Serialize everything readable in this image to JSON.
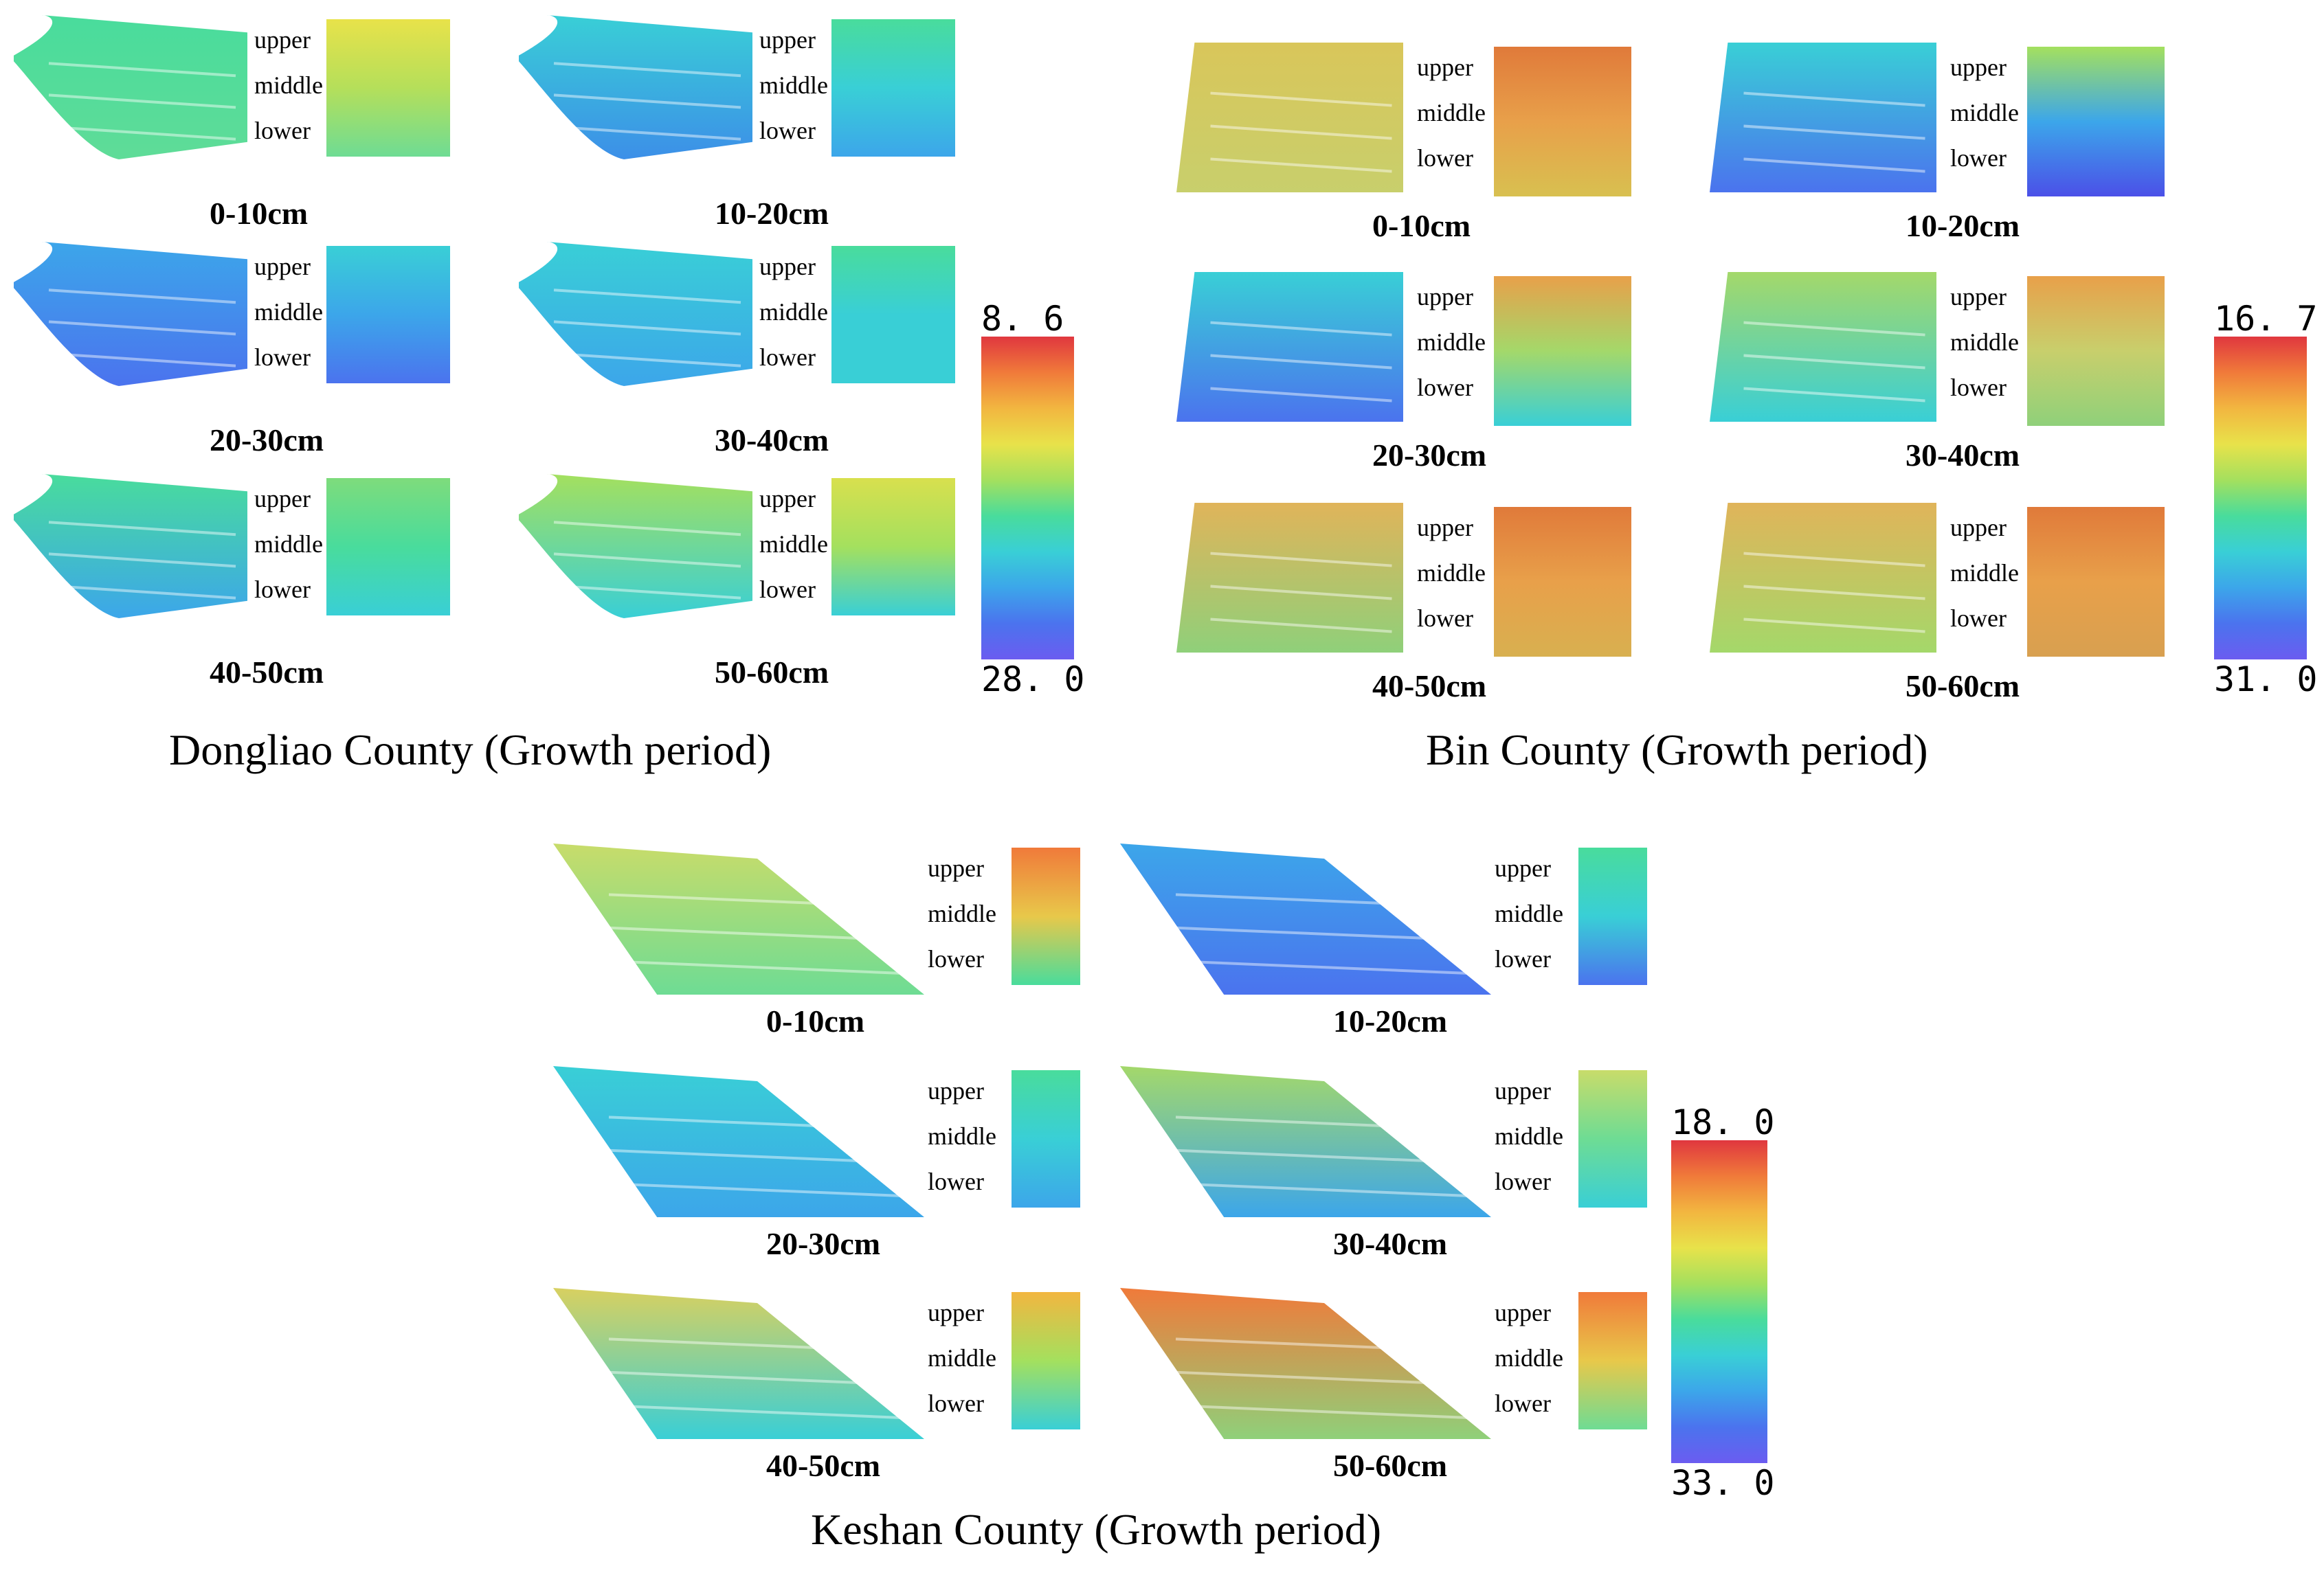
{
  "colorscale": {
    "stops": [
      "#e0373f",
      "#f07a3a",
      "#f2b640",
      "#e8e24a",
      "#a4e05e",
      "#49dc9c",
      "#39cfd6",
      "#3ca6ea",
      "#4b73ee",
      "#6b5cf0"
    ]
  },
  "panels": [
    {
      "name": "dongliao",
      "title": "Dongliao County (Growth period)",
      "legend": {
        "top": "8. 6",
        "bottom": "28. 0"
      },
      "positions": [
        "upper",
        "middle",
        "lower"
      ],
      "cells": [
        {
          "depth": "0-10cm",
          "field": [
            "#49dc9c",
            "#5fdc98"
          ],
          "strip": [
            "#e8e24a",
            "#b5df5a",
            "#6edc94"
          ]
        },
        {
          "depth": "10-20cm",
          "field": [
            "#39cfd6",
            "#3c8fe8"
          ],
          "strip": [
            "#49dc9c",
            "#39cfd6",
            "#3ca6ea"
          ]
        },
        {
          "depth": "20-30cm",
          "field": [
            "#3ca6ea",
            "#4b73ee"
          ],
          "strip": [
            "#39cfd6",
            "#3ca6ea",
            "#4b73ee"
          ]
        },
        {
          "depth": "30-40cm",
          "field": [
            "#39cfd6",
            "#3ca6ea"
          ],
          "strip": [
            "#49dc9c",
            "#39cfd6",
            "#39cfd6"
          ]
        },
        {
          "depth": "40-50cm",
          "field": [
            "#49dc9c",
            "#3ca6ea"
          ],
          "strip": [
            "#7edc7c",
            "#49dc9c",
            "#39cfd6"
          ]
        },
        {
          "depth": "50-60cm",
          "field": [
            "#a4e05e",
            "#39cfd6"
          ],
          "strip": [
            "#d8e04e",
            "#a4e05e",
            "#39cfd6"
          ]
        }
      ]
    },
    {
      "name": "bin",
      "title": "Bin County (Growth period)",
      "legend": {
        "top": "16. 7",
        "bottom": "31. 0"
      },
      "positions": [
        "upper",
        "middle",
        "lower"
      ],
      "cells": [
        {
          "depth": "0-10cm",
          "field": [
            "#d9c65a",
            "#c8cf6c"
          ],
          "strip": [
            "#e07a3a",
            "#e8a04a",
            "#d8c050"
          ]
        },
        {
          "depth": "10-20cm",
          "field": [
            "#39cfd6",
            "#4b73ee"
          ],
          "strip": [
            "#a4e05e",
            "#3ca6ea",
            "#4b50e8"
          ]
        },
        {
          "depth": "20-30cm",
          "field": [
            "#39cfd6",
            "#4b73ee"
          ],
          "strip": [
            "#e8a04a",
            "#a4d86a",
            "#39cfd6"
          ]
        },
        {
          "depth": "30-40cm",
          "field": [
            "#a4d86a",
            "#39cfd6"
          ],
          "strip": [
            "#e8a04a",
            "#c8cf6c",
            "#8fd07a"
          ]
        },
        {
          "depth": "40-50cm",
          "field": [
            "#e0b45a",
            "#8fd07a"
          ],
          "strip": [
            "#e07a3a",
            "#e8a04a",
            "#d8b050"
          ]
        },
        {
          "depth": "50-60cm",
          "field": [
            "#e0b45a",
            "#a4d86a"
          ],
          "strip": [
            "#e07a3a",
            "#e8a04a",
            "#d8a050"
          ]
        }
      ]
    },
    {
      "name": "keshan",
      "title": "Keshan County (Growth period)",
      "legend": {
        "top": "18. 0",
        "bottom": "33. 0"
      },
      "positions": [
        "upper",
        "middle",
        "lower"
      ],
      "cells": [
        {
          "depth": "0-10cm",
          "field": [
            "#c8dc6a",
            "#6edc94"
          ],
          "strip": [
            "#f07a3a",
            "#e8c84a",
            "#49dc9c"
          ]
        },
        {
          "depth": "10-20cm",
          "field": [
            "#3ca6ea",
            "#4b73ee"
          ],
          "strip": [
            "#49dc9c",
            "#39cfd6",
            "#4b73ee"
          ]
        },
        {
          "depth": "20-30cm",
          "field": [
            "#39cfd6",
            "#3ca6ea"
          ],
          "strip": [
            "#49dc9c",
            "#39cfd6",
            "#3ca6ea"
          ]
        },
        {
          "depth": "30-40cm",
          "field": [
            "#a4d86a",
            "#3ca6ea"
          ],
          "strip": [
            "#c8dc6a",
            "#6edc94",
            "#39cfd6"
          ]
        },
        {
          "depth": "40-50cm",
          "field": [
            "#d8d060",
            "#39cfd6"
          ],
          "strip": [
            "#f2b640",
            "#a4e05e",
            "#39cfd6"
          ]
        },
        {
          "depth": "50-60cm",
          "field": [
            "#f07a3a",
            "#8fd07a"
          ],
          "strip": [
            "#f07a3a",
            "#e8c84a",
            "#6edc94"
          ]
        }
      ]
    }
  ]
}
